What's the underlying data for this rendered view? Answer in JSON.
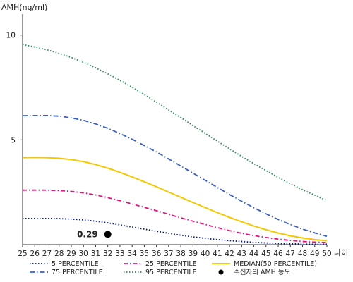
{
  "chart_data": {
    "type": "line",
    "title": "",
    "ylabel": "AMH(ng/ml)",
    "xlabel": "나이",
    "xlim": [
      25,
      50
    ],
    "ylim": [
      0,
      11
    ],
    "x_ticks": [
      25,
      26,
      27,
      28,
      29,
      30,
      31,
      32,
      33,
      34,
      35,
      36,
      37,
      38,
      39,
      40,
      41,
      42,
      43,
      44,
      45,
      46,
      47,
      48,
      49,
      50
    ],
    "y_ticks": [
      5,
      10
    ],
    "x": [
      25,
      26,
      27,
      28,
      29,
      30,
      31,
      32,
      33,
      34,
      35,
      36,
      37,
      38,
      39,
      40,
      41,
      42,
      43,
      44,
      45,
      46,
      47,
      48,
      49,
      50
    ],
    "series": [
      {
        "name": "5 PERCENTILE",
        "color": "#0a1a6b",
        "dash": "dotted",
        "values": [
          1.25,
          1.25,
          1.25,
          1.24,
          1.22,
          1.18,
          1.12,
          1.04,
          0.94,
          0.84,
          0.74,
          0.64,
          0.54,
          0.45,
          0.37,
          0.3,
          0.24,
          0.19,
          0.15,
          0.11,
          0.08,
          0.06,
          0.04,
          0.03,
          0.02,
          0.02
        ]
      },
      {
        "name": "25 PERCENTILE",
        "color": "#e0137f",
        "dash": "dashdot",
        "values": [
          2.6,
          2.6,
          2.6,
          2.58,
          2.54,
          2.47,
          2.37,
          2.24,
          2.1,
          1.94,
          1.78,
          1.62,
          1.45,
          1.28,
          1.12,
          0.96,
          0.81,
          0.67,
          0.54,
          0.43,
          0.34,
          0.26,
          0.2,
          0.15,
          0.12,
          0.1
        ]
      },
      {
        "name": "MEDIAN(50 PERCENTILE)",
        "color": "#f5c800",
        "dash": "solid",
        "values": [
          4.15,
          4.16,
          4.15,
          4.12,
          4.06,
          3.96,
          3.82,
          3.65,
          3.45,
          3.23,
          3.0,
          2.76,
          2.51,
          2.26,
          2.01,
          1.77,
          1.53,
          1.3,
          1.09,
          0.89,
          0.71,
          0.55,
          0.42,
          0.32,
          0.24,
          0.18
        ]
      },
      {
        "name": "75 PERCENTILE",
        "color": "#3a5fc4",
        "dash": "dashdotlong",
        "values": [
          6.15,
          6.16,
          6.16,
          6.13,
          6.05,
          5.93,
          5.76,
          5.55,
          5.3,
          5.03,
          4.73,
          4.42,
          4.09,
          3.75,
          3.41,
          3.07,
          2.73,
          2.39,
          2.07,
          1.76,
          1.47,
          1.2,
          0.96,
          0.74,
          0.56,
          0.4
        ]
      },
      {
        "name": "95 PERCENTILE",
        "color": "#2e8b57",
        "dash": "dotted",
        "values": [
          9.55,
          9.43,
          9.3,
          9.13,
          8.93,
          8.7,
          8.44,
          8.15,
          7.84,
          7.51,
          7.16,
          6.8,
          6.43,
          6.06,
          5.68,
          5.31,
          4.94,
          4.57,
          4.21,
          3.86,
          3.53,
          3.21,
          2.91,
          2.62,
          2.36,
          2.1
        ]
      }
    ],
    "point": {
      "label": "수진자의 AMH 농도",
      "x": 32,
      "y": 0.29,
      "value_label": "0.29",
      "color": "#000000"
    },
    "legend": {
      "position": "bottom",
      "items": [
        {
          "label": "5 PERCENTILE",
          "series": "5 PERCENTILE"
        },
        {
          "label": "25 PERCENTILE",
          "series": "25 PERCENTILE"
        },
        {
          "label": "MEDIAN(50 PERCENTILE)",
          "series": "MEDIAN(50 PERCENTILE)"
        },
        {
          "label": "75 PERCENTILE",
          "series": "75 PERCENTILE"
        },
        {
          "label": "95 PERCENTILE",
          "series": "95 PERCENTILE"
        },
        {
          "label": "수진자의 AMH 농도",
          "series": "point"
        }
      ]
    },
    "grid": false
  }
}
